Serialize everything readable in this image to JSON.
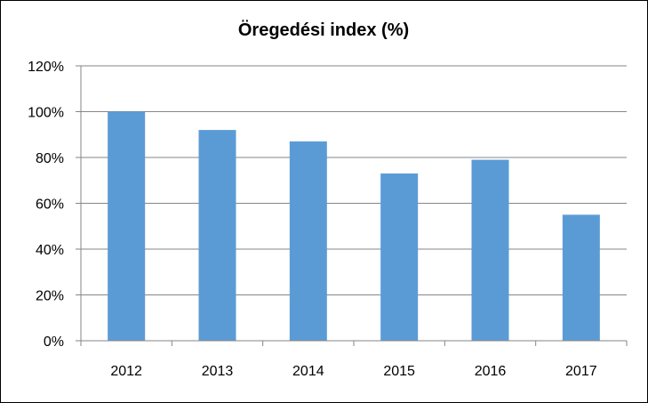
{
  "chart_data": {
    "type": "bar",
    "title": "Öregedési index (%)",
    "xlabel": "",
    "ylabel": "",
    "categories": [
      "2012",
      "2013",
      "2014",
      "2015",
      "2016",
      "2017"
    ],
    "values": [
      100,
      92,
      87,
      73,
      79,
      55
    ],
    "ylim": [
      0,
      120
    ],
    "yticks": [
      0,
      20,
      40,
      60,
      80,
      100,
      120
    ],
    "ytick_labels": [
      "0%",
      "20%",
      "40%",
      "60%",
      "80%",
      "100%",
      "120%"
    ],
    "grid": true,
    "legend": "none",
    "bar_color": "#5B9BD5",
    "grid_color": "#868686"
  }
}
